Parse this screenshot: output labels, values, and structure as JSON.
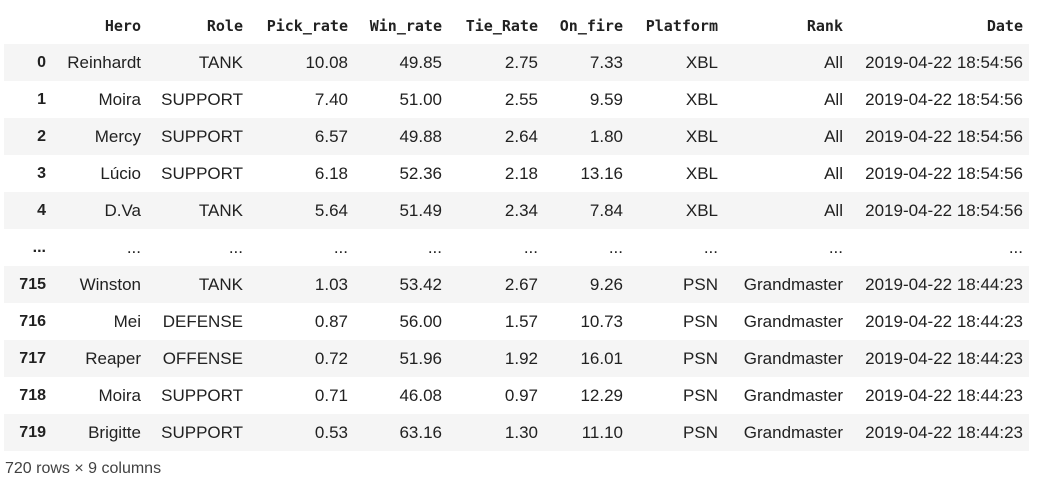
{
  "table": {
    "columns": [
      "Hero",
      "Role",
      "Pick_rate",
      "Win_rate",
      "Tie_Rate",
      "On_fire",
      "Platform",
      "Rank",
      "Date"
    ],
    "rows": [
      {
        "index": "0",
        "cells": [
          "Reinhardt",
          "TANK",
          "10.08",
          "49.85",
          "2.75",
          "7.33",
          "XBL",
          "All",
          "2019-04-22 18:54:56"
        ]
      },
      {
        "index": "1",
        "cells": [
          "Moira",
          "SUPPORT",
          "7.40",
          "51.00",
          "2.55",
          "9.59",
          "XBL",
          "All",
          "2019-04-22 18:54:56"
        ]
      },
      {
        "index": "2",
        "cells": [
          "Mercy",
          "SUPPORT",
          "6.57",
          "49.88",
          "2.64",
          "1.80",
          "XBL",
          "All",
          "2019-04-22 18:54:56"
        ]
      },
      {
        "index": "3",
        "cells": [
          "Lúcio",
          "SUPPORT",
          "6.18",
          "52.36",
          "2.18",
          "13.16",
          "XBL",
          "All",
          "2019-04-22 18:54:56"
        ]
      },
      {
        "index": "4",
        "cells": [
          "D.Va",
          "TANK",
          "5.64",
          "51.49",
          "2.34",
          "7.84",
          "XBL",
          "All",
          "2019-04-22 18:54:56"
        ]
      },
      {
        "index": "...",
        "cells": [
          "...",
          "...",
          "...",
          "...",
          "...",
          "...",
          "...",
          "...",
          "..."
        ]
      },
      {
        "index": "715",
        "cells": [
          "Winston",
          "TANK",
          "1.03",
          "53.42",
          "2.67",
          "9.26",
          "PSN",
          "Grandmaster",
          "2019-04-22 18:44:23"
        ]
      },
      {
        "index": "716",
        "cells": [
          "Mei",
          "DEFENSE",
          "0.87",
          "56.00",
          "1.57",
          "10.73",
          "PSN",
          "Grandmaster",
          "2019-04-22 18:44:23"
        ]
      },
      {
        "index": "717",
        "cells": [
          "Reaper",
          "OFFENSE",
          "0.72",
          "51.96",
          "1.92",
          "16.01",
          "PSN",
          "Grandmaster",
          "2019-04-22 18:44:23"
        ]
      },
      {
        "index": "718",
        "cells": [
          "Moira",
          "SUPPORT",
          "0.71",
          "46.08",
          "0.97",
          "12.29",
          "PSN",
          "Grandmaster",
          "2019-04-22 18:44:23"
        ]
      },
      {
        "index": "719",
        "cells": [
          "Brigitte",
          "SUPPORT",
          "0.53",
          "63.16",
          "1.30",
          "11.10",
          "PSN",
          "Grandmaster",
          "2019-04-22 18:44:23"
        ]
      }
    ]
  },
  "footer": {
    "shape_text": "720 rows × 9 columns"
  }
}
